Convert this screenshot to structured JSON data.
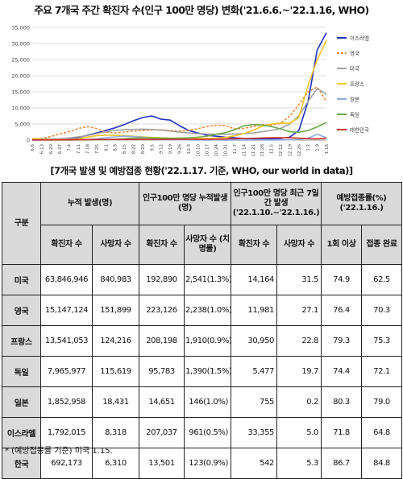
{
  "chart_data": {
    "type": "line",
    "title": "주요 7개국 주간 확진자 수(인구 100만 명당) 변화('21.6.6.~'22.1.16, WHO)",
    "x": [
      "6.6",
      "6.13",
      "6.20",
      "6.27",
      "7.4",
      "7.11",
      "7.18",
      "7.25",
      "8.1",
      "8.8",
      "8.15",
      "8.22",
      "8.29",
      "9.5",
      "9.12",
      "9.19",
      "9.26",
      "10.3",
      "10.10",
      "10.17",
      "10.24",
      "10.31",
      "11.7",
      "11.14",
      "11.21",
      "11.28",
      "12.5",
      "12.12",
      "12.19",
      "12.26",
      "1.2",
      "1.9",
      "1.16"
    ],
    "yticks": [
      "0",
      "5,000",
      "10,000",
      "15,000",
      "20,000",
      "25,000",
      "30,000",
      "35,000"
    ],
    "ylim": [
      0,
      35000
    ],
    "grid": true,
    "legend_position": "right",
    "series": [
      {
        "name": "이스라엘",
        "color": "#1f2fbf",
        "dash": "solid",
        "values": [
          20,
          40,
          80,
          150,
          350,
          800,
          1500,
          2200,
          3000,
          3800,
          4800,
          6000,
          7000,
          7500,
          6500,
          6200,
          4500,
          3000,
          2200,
          1500,
          1200,
          900,
          700,
          500,
          400,
          350,
          400,
          500,
          900,
          3000,
          12000,
          28000,
          33355
        ]
      },
      {
        "name": "영국",
        "color": "#f08a3c",
        "dash": "dash",
        "values": [
          300,
          500,
          1100,
          1900,
          2600,
          3600,
          4200,
          3600,
          2400,
          2200,
          2500,
          2800,
          2900,
          3100,
          3200,
          3000,
          2800,
          3000,
          3500,
          4200,
          4600,
          4500,
          3500,
          3600,
          4200,
          4800,
          4600,
          5200,
          7400,
          11000,
          15000,
          16500,
          11981
        ]
      },
      {
        "name": "미국",
        "color": "#a0a0a0",
        "dash": "solid",
        "values": [
          400,
          350,
          400,
          450,
          650,
          1000,
          1400,
          2000,
          2600,
          3000,
          3200,
          3300,
          3400,
          3300,
          3100,
          2800,
          2500,
          2200,
          2000,
          1900,
          1800,
          1800,
          1900,
          2000,
          2200,
          2600,
          3000,
          3600,
          5000,
          7500,
          12000,
          16000,
          14164
        ]
      },
      {
        "name": "프랑스",
        "color": "#f4c21f",
        "dash": "solid",
        "values": [
          500,
          300,
          200,
          180,
          200,
          400,
          900,
          1400,
          1500,
          1500,
          1400,
          1200,
          1000,
          800,
          700,
          600,
          500,
          450,
          450,
          500,
          600,
          800,
          1300,
          2000,
          3000,
          4300,
          5000,
          5300,
          5200,
          7000,
          17000,
          25000,
          30950
        ]
      },
      {
        "name": "일본",
        "color": "#8faee0",
        "dash": "solid",
        "values": [
          100,
          80,
          70,
          70,
          90,
          120,
          200,
          400,
          700,
          1000,
          1200,
          1100,
          900,
          600,
          300,
          150,
          80,
          50,
          30,
          20,
          15,
          15,
          15,
          15,
          20,
          20,
          30,
          40,
          60,
          200,
          600,
          1800,
          755
        ]
      },
      {
        "name": "독일",
        "color": "#6faa4a",
        "dash": "solid",
        "values": [
          100,
          70,
          50,
          40,
          30,
          40,
          60,
          100,
          160,
          250,
          400,
          600,
          700,
          700,
          600,
          550,
          600,
          700,
          900,
          1200,
          1800,
          2300,
          3200,
          4400,
          4800,
          4700,
          4200,
          3500,
          2600,
          2400,
          3000,
          4100,
          5477
        ]
      },
      {
        "name": "대한민국",
        "color": "#d03030",
        "dash": "solid",
        "values": [
          40,
          40,
          40,
          50,
          70,
          120,
          160,
          180,
          190,
          200,
          210,
          210,
          220,
          230,
          240,
          260,
          280,
          250,
          230,
          220,
          260,
          330,
          420,
          500,
          560,
          640,
          720,
          760,
          700,
          600,
          450,
          400,
          542
        ]
      }
    ]
  },
  "table": {
    "title": "[7개국 발생 및 예방접종 현황('22.1.17. 기준, WHO, our world in data)]",
    "header": {
      "group": "구분",
      "cumulative": "누적 발생(명)",
      "per_million_cumulative": "인구100만 명당 누적발생(명)",
      "per_million_recent": "인구100만 명당 최근 7일간 발생 ('22.1.10.~'22.1.16.)",
      "vaccination": "예방접종률(%) ('22.1.16.)",
      "cases": "확진자 수",
      "deaths": "사망자 수",
      "pm_cases": "확진자 수",
      "pm_deaths": "사망자 수 (치명률)",
      "recent_cases": "확진자 수",
      "recent_deaths": "사망자 수",
      "vac_one": "1회 이상",
      "vac_full": "접종 완료"
    },
    "rows": [
      {
        "country": "미국",
        "cases": "63,846,946",
        "deaths": "840,983",
        "pm_cases": "192,890",
        "pm_deaths": "2,541(1.3%)",
        "recent_cases": "14,164",
        "recent_deaths": "31.5",
        "vac_one": "74.9",
        "vac_full": "62.5"
      },
      {
        "country": "영국",
        "cases": "15,147,124",
        "deaths": "151,899",
        "pm_cases": "223,126",
        "pm_deaths": "2,238(1.0%)",
        "recent_cases": "11,981",
        "recent_deaths": "27.1",
        "vac_one": "76.4",
        "vac_full": "70.3"
      },
      {
        "country": "프랑스",
        "cases": "13,541,053",
        "deaths": "124,216",
        "pm_cases": "208,198",
        "pm_deaths": "1,910(0.9%)",
        "recent_cases": "30,950",
        "recent_deaths": "22.8",
        "vac_one": "79.3",
        "vac_full": "75.3"
      },
      {
        "country": "독일",
        "cases": "7,965,977",
        "deaths": "115,619",
        "pm_cases": "95,783",
        "pm_deaths": "1,390(1.5%)",
        "recent_cases": "5,477",
        "recent_deaths": "19.7",
        "vac_one": "74.4",
        "vac_full": "72.1"
      },
      {
        "country": "일본",
        "cases": "1,852,958",
        "deaths": "18,431",
        "pm_cases": "14,651",
        "pm_deaths": "146(1.0%)",
        "recent_cases": "755",
        "recent_deaths": "0.2",
        "vac_one": "80.3",
        "vac_full": "79.0"
      },
      {
        "country": "이스라엘",
        "cases": "1,792,015",
        "deaths": "8,318",
        "pm_cases": "207,037",
        "pm_deaths": "961(0.5%)",
        "recent_cases": "33,355",
        "recent_deaths": "5.0",
        "vac_one": "71.8",
        "vac_full": "64.8"
      },
      {
        "country": "한국",
        "cases": "692,173",
        "deaths": "6,310",
        "pm_cases": "13,501",
        "pm_deaths": "123(0.9%)",
        "recent_cases": "542",
        "recent_deaths": "5.3",
        "vac_one": "86.7",
        "vac_full": "84.8"
      }
    ]
  },
  "footnote": "* (예방접종률 기준) 미국 1.15."
}
